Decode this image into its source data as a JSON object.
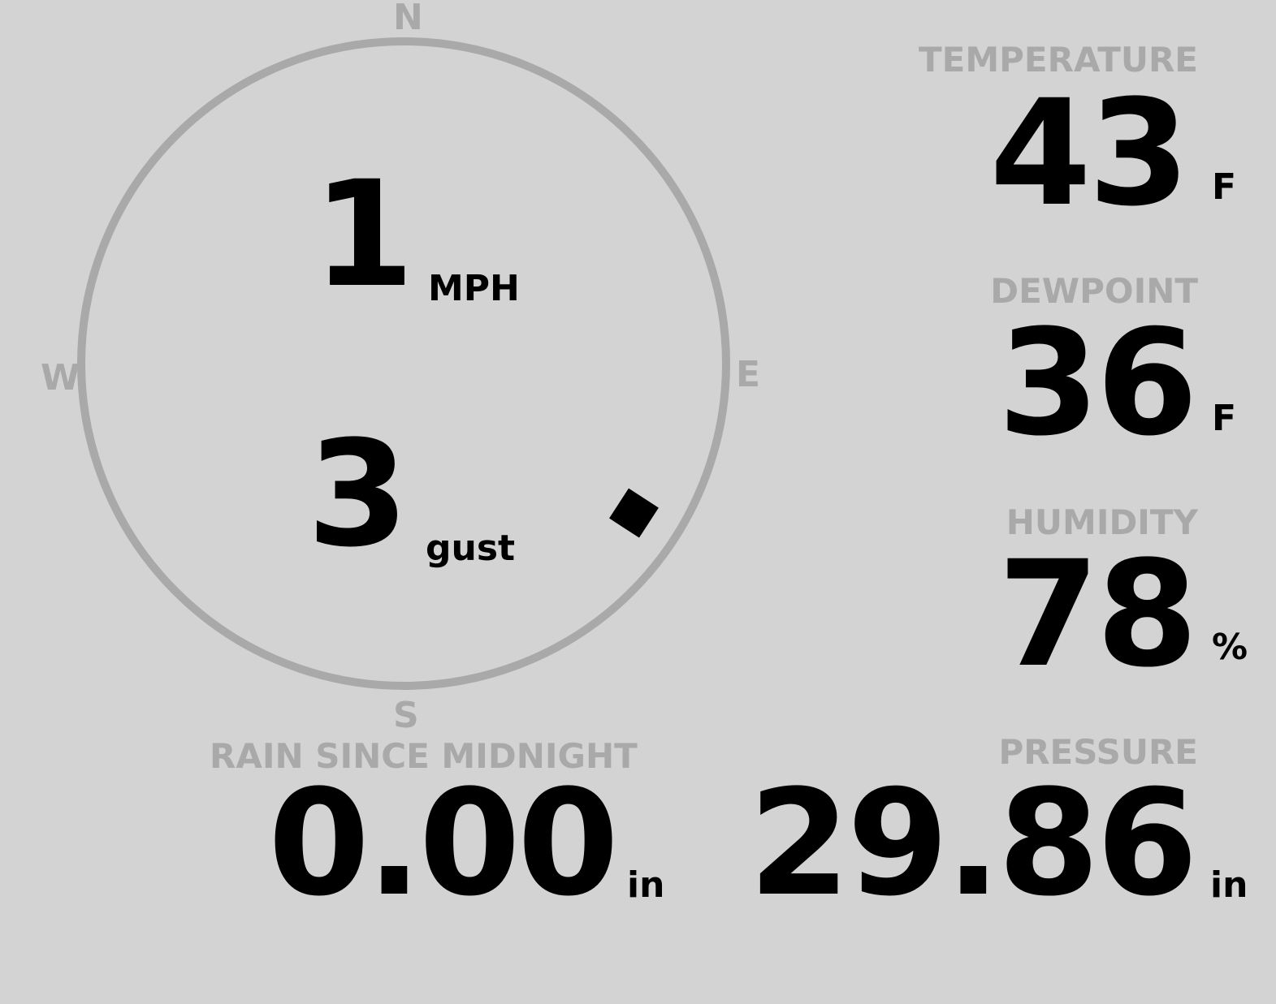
{
  "compass": {
    "north": "N",
    "south": "S",
    "east": "E",
    "west": "W",
    "wind_direction_deg": 123
  },
  "wind": {
    "speed": "1",
    "speed_unit": "MPH",
    "gust": "3",
    "gust_unit": "gust"
  },
  "temperature": {
    "label": "TEMPERATURE",
    "value": "43",
    "unit": "F"
  },
  "dewpoint": {
    "label": "DEWPOINT",
    "value": "36",
    "unit": "F"
  },
  "humidity": {
    "label": "HUMIDITY",
    "value": "78",
    "unit": "%"
  },
  "rain": {
    "label": "RAIN SINCE MIDNIGHT",
    "value": "0.00",
    "unit": "in"
  },
  "pressure": {
    "label": "PRESSURE",
    "value": "29.86",
    "unit": "in"
  },
  "colors": {
    "background": "#d3d3d3",
    "muted": "#a9a9a9",
    "text": "#000000"
  }
}
